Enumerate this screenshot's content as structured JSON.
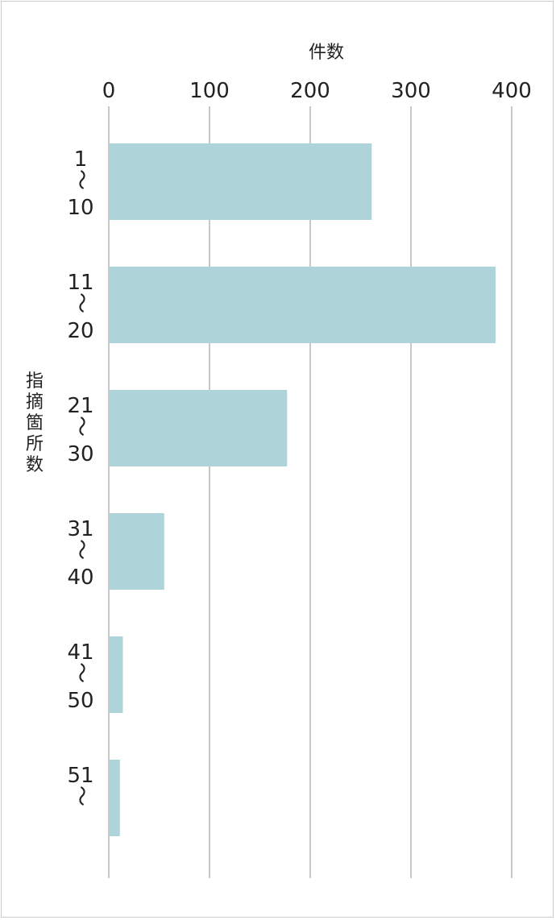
{
  "chart_data": {
    "type": "bar",
    "orientation": "horizontal",
    "xlabel": "件数",
    "ylabel": "指摘箇所数",
    "xlim": [
      0,
      400
    ],
    "xticks": [
      0,
      100,
      200,
      300,
      400
    ],
    "grid": true,
    "categories": [
      {
        "top": "1",
        "bottom": "10"
      },
      {
        "top": "11",
        "bottom": "20"
      },
      {
        "top": "21",
        "bottom": "30"
      },
      {
        "top": "31",
        "bottom": "40"
      },
      {
        "top": "41",
        "bottom": "50"
      },
      {
        "top": "51",
        "bottom": ""
      }
    ],
    "range_symbol": "〜",
    "values": [
      261,
      384,
      177,
      55,
      14,
      11
    ],
    "bar_color": "#aed4da",
    "grid_color": "#c8c8c8"
  }
}
